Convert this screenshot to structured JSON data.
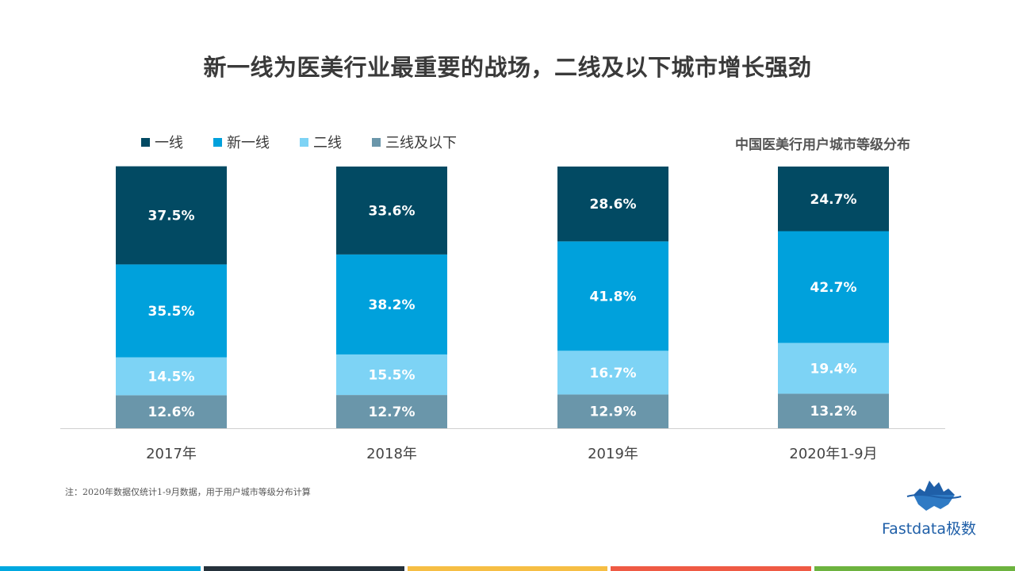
{
  "title": "新一线为医美行业最重要的战场，二线及以下城市增长强劲",
  "subtitle": "中国医美行用户城市等级分布",
  "footnote": "注：2020年数据仅统计1-9月数据，用于用户城市等级分布计算",
  "logo": {
    "text": "Fastdata极数",
    "icon": "iceberg-logo-icon"
  },
  "colors": {
    "tier1": "#024A63",
    "new_tier1": "#00A1DC",
    "tier2": "#7DD3F5",
    "tier3_below": "#6A96AA",
    "bottom_bar": [
      "#00A8E0",
      "#25313B",
      "#F6BE44",
      "#EF5A44",
      "#6DB33F"
    ]
  },
  "legend": [
    {
      "label": "一线",
      "color_key": "tier1"
    },
    {
      "label": "新一线",
      "color_key": "new_tier1"
    },
    {
      "label": "二线",
      "color_key": "tier2"
    },
    {
      "label": "三线及以下",
      "color_key": "tier3_below"
    }
  ],
  "chart_data": {
    "type": "bar",
    "stacked": true,
    "categories": [
      "2017年",
      "2018年",
      "2019年",
      "2020年1-9月"
    ],
    "series": [
      {
        "name": "三线及以下",
        "values": [
          12.6,
          12.7,
          12.9,
          13.2
        ],
        "labels": [
          "12.6%",
          "12.7%",
          "12.9%",
          "13.2%"
        ]
      },
      {
        "name": "二线",
        "values": [
          14.5,
          15.5,
          16.7,
          19.4
        ],
        "labels": [
          "14.5%",
          "15.5%",
          "16.7%",
          "19.4%"
        ]
      },
      {
        "name": "新一线",
        "values": [
          35.5,
          38.2,
          41.8,
          42.7
        ],
        "labels": [
          "35.5%",
          "38.2%",
          "41.8%",
          "42.7%"
        ]
      },
      {
        "name": "一线",
        "values": [
          37.5,
          33.6,
          28.6,
          24.7
        ],
        "labels": [
          "37.5%",
          "33.6%",
          "28.6%",
          "24.7%"
        ]
      }
    ],
    "ylim": [
      0,
      100
    ],
    "unit": "%",
    "grid": false,
    "legend_position": "top-left"
  }
}
